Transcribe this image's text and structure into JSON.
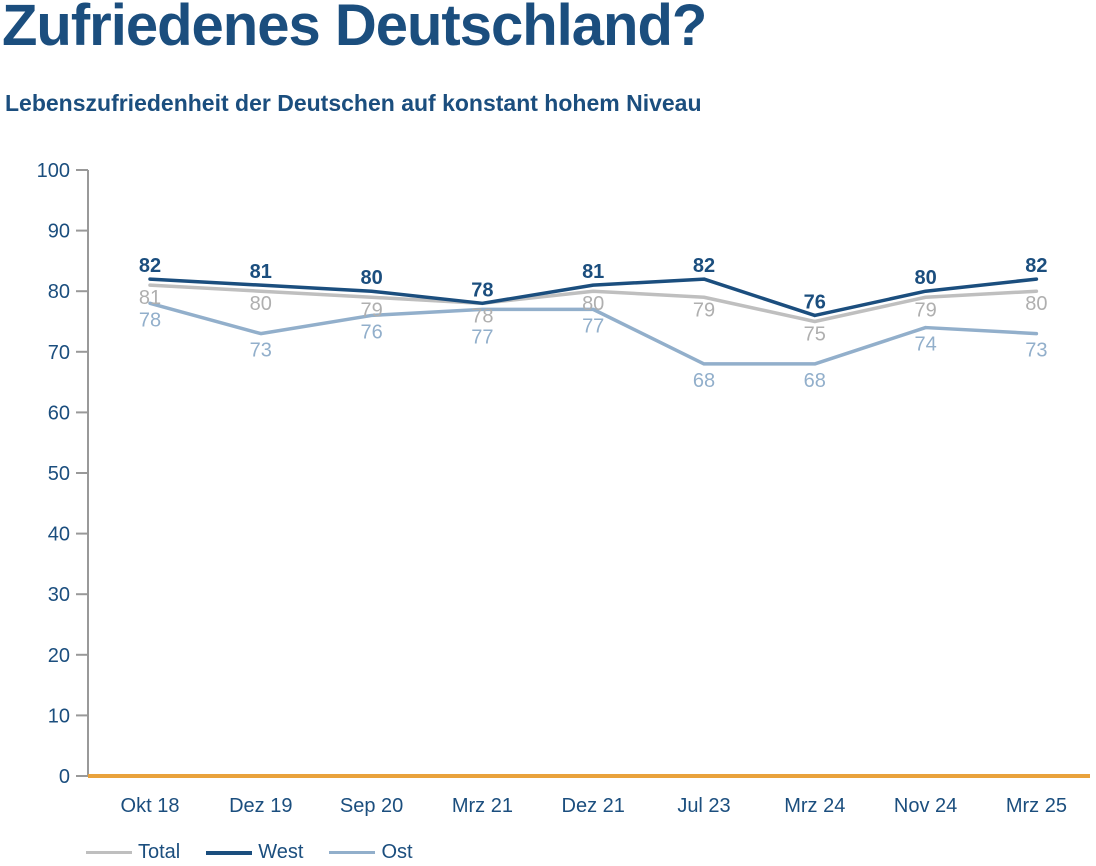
{
  "header": {
    "title": "Zufriedenes Deutschland?",
    "subtitle": "Lebenszufriedenheit der Deutschen auf konstant hohem Niveau"
  },
  "chart_data": {
    "type": "line",
    "title": "Zufriedenes Deutschland?",
    "subtitle": "Lebenszufriedenheit der Deutschen auf konstant hohem Niveau",
    "categories": [
      "Okt 18",
      "Dez 19",
      "Sep 20",
      "Mrz 21",
      "Dez 21",
      "Jul 23",
      "Mrz 24",
      "Nov 24",
      "Mrz 25"
    ],
    "series": [
      {
        "name": "Total",
        "color": "#bfbfbf",
        "label_color": "#afafaf",
        "values": [
          81,
          80,
          79,
          78,
          80,
          79,
          75,
          79,
          80
        ]
      },
      {
        "name": "West",
        "color": "#1b4e7e",
        "label_color": "#1b4e7e",
        "values": [
          82,
          81,
          80,
          78,
          81,
          82,
          76,
          80,
          82
        ]
      },
      {
        "name": "Ost",
        "color": "#92afcb",
        "label_color": "#92afcb",
        "values": [
          78,
          73,
          76,
          77,
          77,
          68,
          68,
          74,
          73
        ]
      }
    ],
    "xlabel": "",
    "ylabel": "",
    "ylim": [
      0,
      100
    ],
    "y_ticks": [
      100,
      90,
      80,
      70,
      60,
      50,
      40,
      30,
      20,
      10,
      0
    ],
    "grid": false,
    "legend_position": "bottom-left",
    "axis_color": "#999999",
    "baseline_color": "#e9a23c",
    "text_color": "#1b4e7e"
  }
}
